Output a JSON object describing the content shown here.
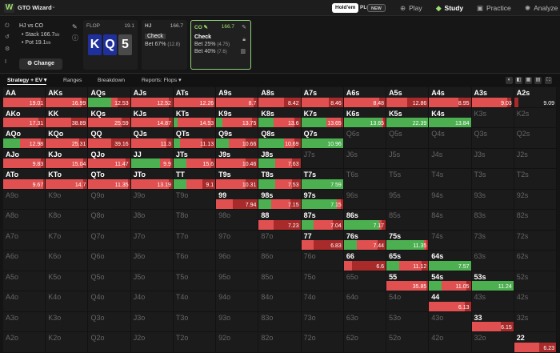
{
  "app": {
    "title": "GTO Wizard",
    "logo": "W",
    "chevron": "⌄"
  },
  "game_pills": [
    {
      "label": "Hold'em"
    },
    {
      "label": "PLO"
    },
    {
      "label": "NEW"
    }
  ],
  "nav": [
    {
      "label": "Play",
      "icon": "gamepad-icon",
      "glyph": "⊕"
    },
    {
      "label": "Study",
      "icon": "graduation-cap-icon",
      "glyph": "◆"
    },
    {
      "label": "Practice",
      "icon": "controller-icon",
      "glyph": "▣"
    },
    {
      "label": "Analyze",
      "icon": "lightbulb-icon",
      "glyph": "✺"
    }
  ],
  "spot": {
    "matchup": "HJ vs CO",
    "stack": "• Stack 166.7",
    "stack_unit": "bb",
    "pot": "• Pot 19.1",
    "pot_unit": "bb",
    "change_label": "⚙ Change"
  },
  "flop": {
    "label": "FLOP",
    "pot": "19.1",
    "cards": [
      {
        "rank": "K",
        "color": "#1f2f9c"
      },
      {
        "rank": "Q",
        "color": "#1f2f9c"
      },
      {
        "rank": "5",
        "color": "#4a4a4a"
      }
    ]
  },
  "hj": {
    "pos": "HJ",
    "stack": "166.7",
    "options": [
      {
        "label": "Check",
        "freq": ""
      },
      {
        "label": "Bet 67%",
        "freq": "(12.8)"
      }
    ]
  },
  "co": {
    "pos": "CO",
    "stack": "166.7",
    "options": [
      {
        "label": "Check",
        "freq": ""
      },
      {
        "label": "Bet 25%",
        "freq": "(4.75)"
      },
      {
        "label": "Bet 40%",
        "freq": "(7.6)"
      }
    ]
  },
  "tabs": [
    {
      "label": "Strategy + EV ▾"
    },
    {
      "label": "Ranges"
    },
    {
      "label": "Breakdown"
    },
    {
      "label": "Reports: Flops ▾"
    }
  ],
  "colors": {
    "check": "#4caf50",
    "bet25": "#e05050",
    "bet40": "#a82a2a"
  },
  "grid": [
    [
      [
        "AA",
        "19.01",
        [
          0,
          0.9,
          1
        ]
      ],
      [
        "AKs",
        "16.99",
        [
          0,
          0.85,
          1
        ]
      ],
      [
        "AQs",
        "12.53",
        [
          0.55,
          0.7,
          1
        ]
      ],
      [
        "AJs",
        "12.52",
        [
          0,
          0.9,
          1
        ]
      ],
      [
        "ATs",
        "12.26",
        [
          0,
          0.95,
          1
        ]
      ],
      [
        "A9s",
        "8.7",
        [
          0,
          0.9,
          1
        ]
      ],
      [
        "A8s",
        "8.42",
        [
          0,
          0.6,
          1
        ]
      ],
      [
        "A7s",
        "8.46",
        [
          0,
          0.65,
          1
        ]
      ],
      [
        "A6s",
        "8.48",
        [
          0,
          0.85,
          1
        ]
      ],
      [
        "A5s",
        "12.86",
        [
          0,
          0.5,
          1
        ]
      ],
      [
        "A4s",
        "8.95",
        [
          0,
          0.7,
          1
        ]
      ],
      [
        "A3s",
        "9.03",
        [
          0,
          0.85,
          0.95
        ]
      ],
      [
        "A2s",
        "9.09",
        [
          0,
          0.0,
          0.1
        ]
      ]
    ],
    [
      [
        "AKo",
        "17.31",
        [
          0,
          0.85,
          1
        ]
      ],
      [
        "KK",
        "38.89",
        [
          0,
          0.6,
          1
        ]
      ],
      [
        "KQs",
        "25.59",
        [
          0,
          0.8,
          1
        ]
      ],
      [
        "KJs",
        "14.87",
        [
          0,
          0.9,
          1
        ]
      ],
      [
        "KTs",
        "14.53",
        [
          0.1,
          0.9,
          1
        ]
      ],
      [
        "K9s",
        "13.75",
        [
          0.15,
          0.85,
          1
        ]
      ],
      [
        "K8s",
        "13.6",
        [
          0.35,
          0.85,
          1
        ]
      ],
      [
        "K7s",
        "13.65",
        [
          0.6,
          0.95,
          1
        ]
      ],
      [
        "K6s",
        "13.65",
        [
          0.9,
          0.95,
          1
        ]
      ],
      [
        "K5s",
        "22.39",
        [
          1,
          1,
          1
        ]
      ],
      [
        "K4s",
        "13.84",
        [
          1,
          1,
          1
        ]
      ],
      [
        "K3s",
        "",
        null
      ],
      [
        "K2s",
        "",
        null
      ]
    ],
    [
      [
        "AQo",
        "12.98",
        [
          0.4,
          0.9,
          1
        ]
      ],
      [
        "KQo",
        "25.31",
        [
          0,
          0.8,
          1
        ]
      ],
      [
        "QQ",
        "39.16",
        [
          0,
          0.55,
          1
        ]
      ],
      [
        "QJs",
        "11.3",
        [
          0,
          0.85,
          1
        ]
      ],
      [
        "QTs",
        "11.13",
        [
          0.15,
          0.7,
          1
        ]
      ],
      [
        "Q9s",
        "10.66",
        [
          0.3,
          0.7,
          1
        ]
      ],
      [
        "Q8s",
        "10.69",
        [
          0.6,
          0.85,
          1
        ]
      ],
      [
        "Q7s",
        "10.96",
        [
          1,
          1,
          1
        ]
      ],
      [
        "Q6s",
        "",
        null
      ],
      [
        "Q5s",
        "",
        null
      ],
      [
        "Q4s",
        "",
        null
      ],
      [
        "Q3s",
        "",
        null
      ],
      [
        "Q2s",
        "",
        null
      ]
    ],
    [
      [
        "AJo",
        "9.83",
        [
          0,
          0.9,
          1
        ]
      ],
      [
        "KJo",
        "15.04",
        [
          0,
          0.9,
          1
        ]
      ],
      [
        "QJo",
        "11.47",
        [
          0,
          0.9,
          1
        ]
      ],
      [
        "JJ",
        "9.9",
        [
          0.7,
          0.95,
          1
        ]
      ],
      [
        "JTs",
        "15.6",
        [
          0.3,
          0.9,
          1
        ]
      ],
      [
        "J9s",
        "10.46",
        [
          0,
          0.7,
          1
        ]
      ],
      [
        "J8s",
        "7.63",
        [
          0.4,
          0.8,
          1
        ]
      ],
      [
        "J7s",
        "",
        null
      ],
      [
        "J6s",
        "",
        null
      ],
      [
        "J5s",
        "",
        null
      ],
      [
        "J4s",
        "",
        null
      ],
      [
        "J3s",
        "",
        null
      ],
      [
        "J2s",
        "",
        null
      ]
    ],
    [
      [
        "ATo",
        "9.67",
        [
          0,
          0.95,
          1
        ]
      ],
      [
        "KTo",
        "14.7",
        [
          0,
          0.9,
          1
        ]
      ],
      [
        "QTo",
        "11.35",
        [
          0,
          0.95,
          1
        ]
      ],
      [
        "JTo",
        "13.19",
        [
          0,
          0.9,
          1
        ]
      ],
      [
        "TT",
        "9.1",
        [
          0.3,
          0.7,
          1
        ]
      ],
      [
        "T9s",
        "10.31",
        [
          0,
          0.7,
          1
        ]
      ],
      [
        "T8s",
        "7.53",
        [
          0.4,
          0.8,
          1
        ]
      ],
      [
        "T7s",
        "7.59",
        [
          1,
          1,
          1
        ]
      ],
      [
        "T6s",
        "",
        null
      ],
      [
        "T5s",
        "",
        null
      ],
      [
        "T4s",
        "",
        null
      ],
      [
        "T3s",
        "",
        null
      ],
      [
        "T2s",
        "",
        null
      ]
    ],
    [
      [
        "A9o",
        "",
        null
      ],
      [
        "K9o",
        "",
        null
      ],
      [
        "Q9o",
        "",
        null
      ],
      [
        "J9o",
        "",
        null
      ],
      [
        "T9o",
        "",
        null
      ],
      [
        "99",
        "7.94",
        [
          0,
          0.4,
          1
        ]
      ],
      [
        "98s",
        "7.15",
        [
          0.3,
          0.75,
          1
        ]
      ],
      [
        "97s",
        "7.15",
        [
          0.85,
          0.95,
          1
        ]
      ],
      [
        "96s",
        "",
        null
      ],
      [
        "95s",
        "",
        null
      ],
      [
        "94s",
        "",
        null
      ],
      [
        "93s",
        "",
        null
      ],
      [
        "92s",
        "",
        null
      ]
    ],
    [
      [
        "A8o",
        "",
        null
      ],
      [
        "K8o",
        "",
        null
      ],
      [
        "Q8o",
        "",
        null
      ],
      [
        "J8o",
        "",
        null
      ],
      [
        "T8o",
        "",
        null
      ],
      [
        "98o",
        "",
        null
      ],
      [
        "88",
        "7.23",
        [
          0,
          0.35,
          1
        ]
      ],
      [
        "87s",
        "7.04",
        [
          0.3,
          0.75,
          1
        ]
      ],
      [
        "86s",
        "7.17",
        [
          0.85,
          0.9,
          1
        ]
      ],
      [
        "85s",
        "",
        null
      ],
      [
        "84s",
        "",
        null
      ],
      [
        "83s",
        "",
        null
      ],
      [
        "82s",
        "",
        null
      ]
    ],
    [
      [
        "A7o",
        "",
        null
      ],
      [
        "K7o",
        "",
        null
      ],
      [
        "Q7o",
        "",
        null
      ],
      [
        "J7o",
        "",
        null
      ],
      [
        "T7o",
        "",
        null
      ],
      [
        "97o",
        "",
        null
      ],
      [
        "87o",
        "",
        null
      ],
      [
        "77",
        "6.83",
        [
          0,
          0.3,
          1
        ]
      ],
      [
        "76s",
        "7.44",
        [
          0.3,
          0.8,
          1
        ]
      ],
      [
        "75s",
        "11.35",
        [
          0.9,
          0.95,
          1
        ]
      ],
      [
        "74s",
        "",
        null
      ],
      [
        "73s",
        "",
        null
      ],
      [
        "72s",
        "",
        null
      ]
    ],
    [
      [
        "A6o",
        "",
        null
      ],
      [
        "K6o",
        "",
        null
      ],
      [
        "Q6o",
        "",
        null
      ],
      [
        "J6o",
        "",
        null
      ],
      [
        "T6o",
        "",
        null
      ],
      [
        "96o",
        "",
        null
      ],
      [
        "86o",
        "",
        null
      ],
      [
        "76o",
        "",
        null
      ],
      [
        "66",
        "6.6",
        [
          0,
          0.2,
          1
        ]
      ],
      [
        "65s",
        "11.12",
        [
          0.3,
          0.85,
          1
        ]
      ],
      [
        "64s",
        "7.57",
        [
          1,
          1,
          1
        ]
      ],
      [
        "63s",
        "",
        null
      ],
      [
        "62s",
        "",
        null
      ]
    ],
    [
      [
        "A5o",
        "",
        null
      ],
      [
        "K5o",
        "",
        null
      ],
      [
        "Q5o",
        "",
        null
      ],
      [
        "J5o",
        "",
        null
      ],
      [
        "T5o",
        "",
        null
      ],
      [
        "95o",
        "",
        null
      ],
      [
        "85o",
        "",
        null
      ],
      [
        "75o",
        "",
        null
      ],
      [
        "65o",
        "",
        null
      ],
      [
        "55",
        "35.85",
        [
          0,
          0.95,
          1
        ]
      ],
      [
        "54s",
        "11.05",
        [
          0.3,
          0.9,
          1
        ]
      ],
      [
        "53s",
        "11.24",
        [
          1,
          1,
          1
        ]
      ],
      [
        "52s",
        "",
        null
      ]
    ],
    [
      [
        "A4o",
        "",
        null
      ],
      [
        "K4o",
        "",
        null
      ],
      [
        "Q4o",
        "",
        null
      ],
      [
        "J4o",
        "",
        null
      ],
      [
        "T4o",
        "",
        null
      ],
      [
        "94o",
        "",
        null
      ],
      [
        "84o",
        "",
        null
      ],
      [
        "74o",
        "",
        null
      ],
      [
        "64o",
        "",
        null
      ],
      [
        "54o",
        "",
        null
      ],
      [
        "44",
        "6.13",
        [
          0,
          0.85,
          1
        ]
      ],
      [
        "43s",
        "",
        null
      ],
      [
        "42s",
        "",
        null
      ]
    ],
    [
      [
        "A3o",
        "",
        null
      ],
      [
        "K3o",
        "",
        null
      ],
      [
        "Q3o",
        "",
        null
      ],
      [
        "J3o",
        "",
        null
      ],
      [
        "T3o",
        "",
        null
      ],
      [
        "93o",
        "",
        null
      ],
      [
        "83o",
        "",
        null
      ],
      [
        "73o",
        "",
        null
      ],
      [
        "63o",
        "",
        null
      ],
      [
        "53o",
        "",
        null
      ],
      [
        "43o",
        "",
        null
      ],
      [
        "33",
        "6.15",
        [
          0,
          0.7,
          1
        ]
      ],
      [
        "32s",
        "",
        null
      ]
    ],
    [
      [
        "A2o",
        "",
        null
      ],
      [
        "K2o",
        "",
        null
      ],
      [
        "Q2o",
        "",
        null
      ],
      [
        "J2o",
        "",
        null
      ],
      [
        "T2o",
        "",
        null
      ],
      [
        "92o",
        "",
        null
      ],
      [
        "82o",
        "",
        null
      ],
      [
        "72o",
        "",
        null
      ],
      [
        "62o",
        "",
        null
      ],
      [
        "52o",
        "",
        null
      ],
      [
        "42o",
        "",
        null
      ],
      [
        "32o",
        "",
        null
      ],
      [
        "22",
        "6.23",
        [
          0,
          0.6,
          1
        ]
      ]
    ]
  ]
}
